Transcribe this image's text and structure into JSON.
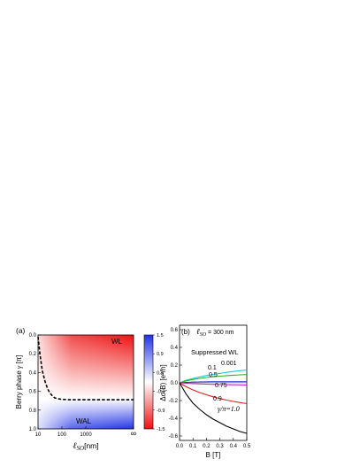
{
  "chart_data": [
    {
      "type": "heatmap",
      "panel_label": "(a)",
      "ylabel_prefix": "Berry phase ",
      "ylabel_symbol": "γ",
      "ylabel_unit": " [π]",
      "xlabel_symbol": "ℓ",
      "xlabel_sub": "SO",
      "xlabel_unit": "[nm]",
      "x_scale": "log",
      "xlim": [
        10,
        100000
      ],
      "ylim": [
        0.0,
        1.0
      ],
      "y_inverted": true,
      "x_ticks": [
        {
          "value": 10,
          "label": "10"
        },
        {
          "value": 100,
          "label": "100"
        },
        {
          "value": 1000,
          "label": "1000"
        },
        {
          "value": 100000,
          "label": "∞"
        }
      ],
      "y_ticks": [
        {
          "value": 0.0,
          "label": "0.0"
        },
        {
          "value": 0.2,
          "label": "0.2"
        },
        {
          "value": 0.4,
          "label": "0.4"
        },
        {
          "value": 0.6,
          "label": "0.6"
        },
        {
          "value": 0.8,
          "label": "0.8"
        },
        {
          "value": 1.0,
          "label": "1.0"
        }
      ],
      "regions": [
        {
          "label": "WL"
        },
        {
          "label": "WAL"
        }
      ],
      "colorbar": {
        "ticks": [
          "1.5",
          "0.9",
          "0.3",
          "-0.3",
          "-0.9",
          "-1.5"
        ],
        "top_color": "#2233e6",
        "mid_color": "#ffffff",
        "bottom_color": "#ee1111"
      },
      "boundary_curve": {
        "style": "dashed",
        "x": [
          10,
          12,
          15,
          20,
          25,
          30,
          40,
          50,
          70,
          100,
          200,
          500,
          1000,
          100000
        ],
        "y": [
          0.02,
          0.2,
          0.38,
          0.5,
          0.57,
          0.61,
          0.65,
          0.67,
          0.68,
          0.685,
          0.69,
          0.69,
          0.69,
          0.69
        ]
      }
    },
    {
      "type": "line",
      "panel_label": "(b)",
      "xlabel": "B [T]",
      "ylabel": "Δσ(B) [e²/h]",
      "xlim": [
        0.0,
        0.5
      ],
      "ylim": [
        -0.65,
        0.65
      ],
      "x_ticks": [
        "0.0",
        "0.1",
        "0.2",
        "0.3",
        "0.4",
        "0.5"
      ],
      "y_ticks": [
        "0.6",
        "0.4",
        "0.2",
        "0.0",
        "-0.2",
        "-0.4",
        "-0.6"
      ],
      "annotations": {
        "lso_symbol": "ℓ",
        "lso_sub": "SO",
        "lso_value": " = 300 nm",
        "suppressed": "Suppressed WL",
        "gamma_prefix": "γ/π=1.0"
      },
      "series": [
        {
          "name": "0.001",
          "color": "#20c8d8",
          "x": [
            0,
            0.05,
            0.1,
            0.15,
            0.2,
            0.25,
            0.3,
            0.35,
            0.4,
            0.45,
            0.5
          ],
          "values": [
            0,
            0.03,
            0.05,
            0.067,
            0.082,
            0.095,
            0.107,
            0.118,
            0.128,
            0.137,
            0.145
          ]
        },
        {
          "name": "0.1",
          "color": "#22b822",
          "x": [
            0,
            0.05,
            0.1,
            0.15,
            0.2,
            0.25,
            0.3,
            0.35,
            0.4,
            0.45,
            0.5
          ],
          "values": [
            0,
            0.022,
            0.038,
            0.05,
            0.06,
            0.068,
            0.075,
            0.081,
            0.086,
            0.09,
            0.093
          ]
        },
        {
          "name": "0.5",
          "color": "#2030c8",
          "x": [
            0,
            0.05,
            0.1,
            0.15,
            0.2,
            0.25,
            0.3,
            0.35,
            0.4,
            0.45,
            0.5
          ],
          "values": [
            0,
            0.005,
            0.008,
            0.01,
            0.011,
            0.012,
            0.012,
            0.012,
            0.012,
            0.012,
            0.012
          ]
        },
        {
          "name": "0.75",
          "color": "#b030c0",
          "x": [
            0,
            0.05,
            0.1,
            0.15,
            0.2,
            0.25,
            0.3,
            0.35,
            0.4,
            0.45,
            0.5
          ],
          "values": [
            0,
            -0.005,
            -0.009,
            -0.012,
            -0.015,
            -0.017,
            -0.019,
            -0.021,
            -0.022,
            -0.023,
            -0.024
          ]
        },
        {
          "name": "0.9",
          "color": "#e02020",
          "x": [
            0,
            0.05,
            0.1,
            0.15,
            0.2,
            0.25,
            0.3,
            0.35,
            0.4,
            0.45,
            0.5
          ],
          "values": [
            0,
            -0.045,
            -0.08,
            -0.11,
            -0.135,
            -0.158,
            -0.178,
            -0.195,
            -0.21,
            -0.223,
            -0.235
          ]
        },
        {
          "name": "1.0",
          "color": "#000000",
          "x": [
            0,
            0.05,
            0.1,
            0.15,
            0.2,
            0.25,
            0.3,
            0.35,
            0.4,
            0.45,
            0.5
          ],
          "values": [
            0,
            -0.13,
            -0.23,
            -0.3,
            -0.36,
            -0.41,
            -0.45,
            -0.49,
            -0.52,
            -0.55,
            -0.57
          ]
        }
      ]
    }
  ]
}
